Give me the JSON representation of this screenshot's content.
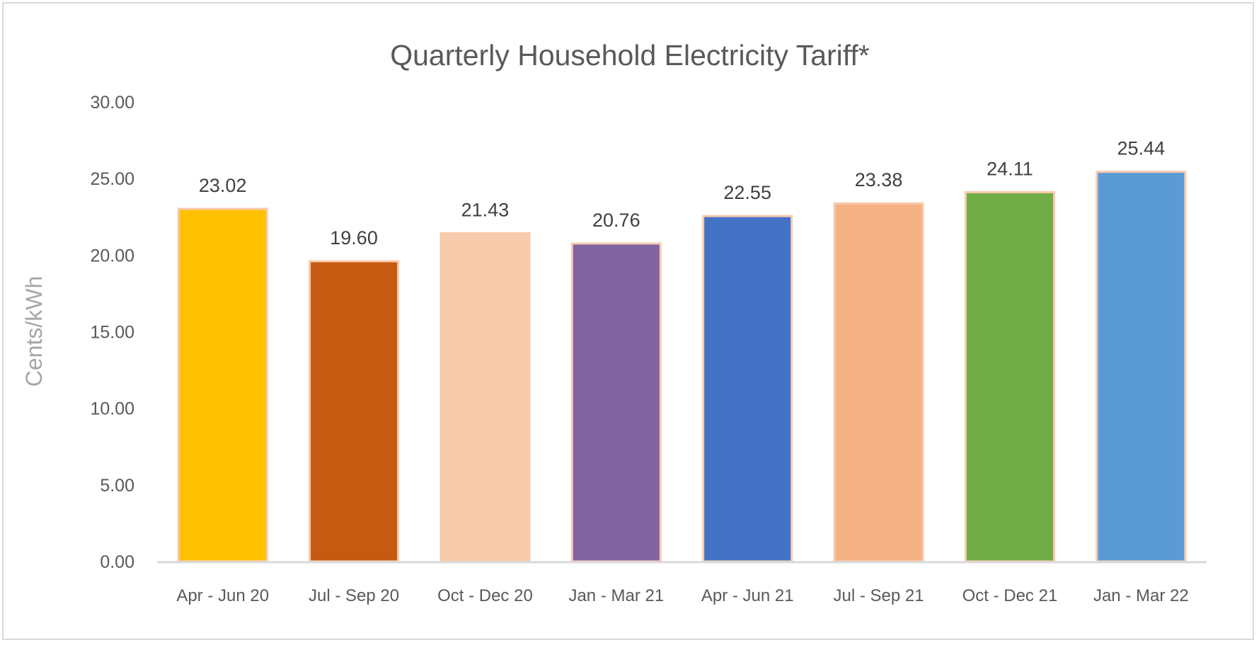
{
  "chart_data": {
    "type": "bar",
    "title": "Quarterly Household Electricity Tariff*",
    "xlabel": "",
    "ylabel": "Cents/kWh",
    "ylim": [
      0,
      30
    ],
    "yticks": [
      "0.00",
      "5.00",
      "10.00",
      "15.00",
      "20.00",
      "25.00",
      "30.00"
    ],
    "grid": false,
    "legend": "none",
    "categories": [
      "Apr - Jun 20",
      "Jul - Sep 20",
      "Oct - Dec 20",
      "Jan - Mar 21",
      "Apr - Jun 21",
      "Jul - Sep 21",
      "Oct - Dec 21",
      "Jan - Mar 22"
    ],
    "values": [
      23.02,
      19.6,
      21.43,
      20.76,
      22.55,
      23.38,
      24.11,
      25.44
    ],
    "data_labels": [
      "23.02",
      "19.60",
      "21.43",
      "20.76",
      "22.55",
      "23.38",
      "24.11",
      "25.44"
    ],
    "colors": [
      "#FFC000",
      "#C55A11",
      "#F8CBAD",
      "#8064A2",
      "#4472C4",
      "#F4B183",
      "#70AD47",
      "#5B9BD5"
    ],
    "bar_border_color": "#F8CBAD"
  }
}
